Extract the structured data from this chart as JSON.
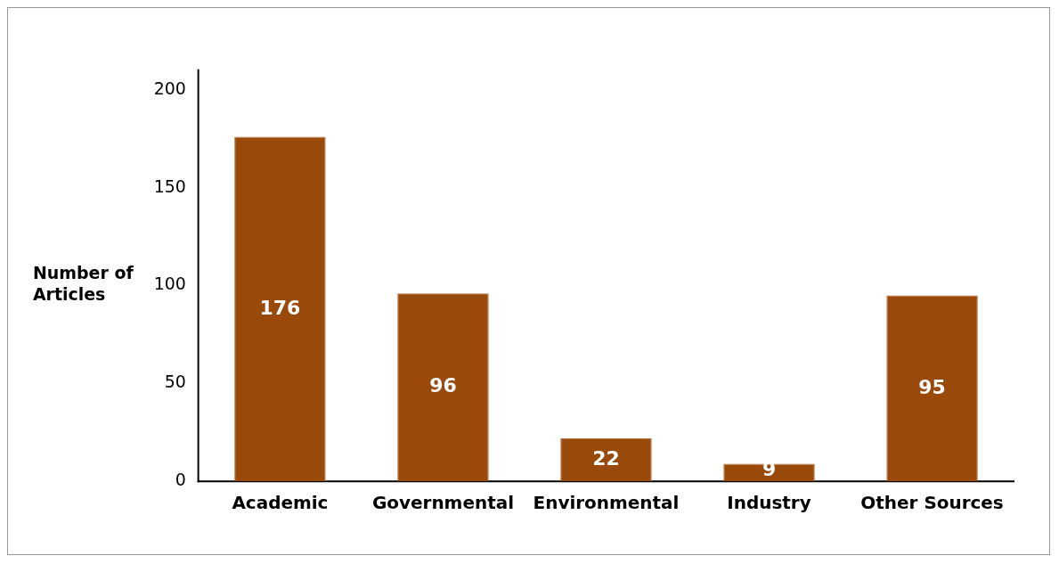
{
  "chart_data": {
    "type": "bar",
    "ylabel": "Number of Articles",
    "categories": [
      "Academic",
      "Governmental",
      "Environmental",
      "Industry",
      "Other Sources"
    ],
    "values": [
      176,
      96,
      22,
      9,
      95
    ],
    "color": "#994a0b",
    "ylim": [
      0,
      210
    ],
    "yticks": [
      0,
      50,
      100,
      150,
      200
    ],
    "grid": false,
    "legend": false,
    "data_labels": true
  }
}
